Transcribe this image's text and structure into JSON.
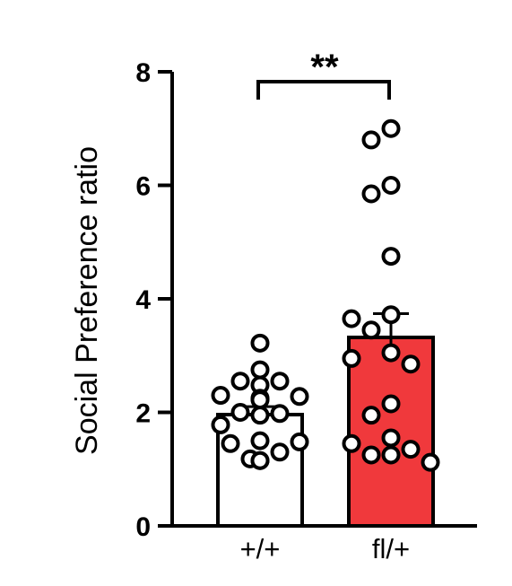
{
  "chart_data": {
    "type": "bar",
    "categories": [
      "+/+",
      "fl/+"
    ],
    "ylabel": "Social Preference ratio",
    "xlabel": "",
    "ylim": [
      0,
      8
    ],
    "yticks": [
      "0",
      "2",
      "4",
      "6",
      "8"
    ],
    "grid": false,
    "series": [
      {
        "values": [
          1.96,
          3.32
        ],
        "errors": [
          0.14,
          0.42
        ],
        "colors": [
          "#ffffff",
          "#f0393c"
        ]
      }
    ],
    "points": [
      [
        3.22,
        2.75,
        2.55,
        2.55,
        2.48,
        2.3,
        2.28,
        2.25,
        2.22,
        2.0,
        1.98,
        1.95,
        1.78,
        1.5,
        1.48,
        1.45,
        1.3,
        1.18,
        1.15,
        1.15
      ],
      [
        7.0,
        6.8,
        6.0,
        5.85,
        4.75,
        3.72,
        3.65,
        3.45,
        3.05,
        2.95,
        2.85,
        2.15,
        1.95,
        1.55,
        1.45,
        1.35,
        1.25,
        1.25,
        1.12
      ]
    ],
    "annotations": [
      {
        "text": "**",
        "between": [
          "+/+",
          "fl/+"
        ]
      }
    ]
  }
}
